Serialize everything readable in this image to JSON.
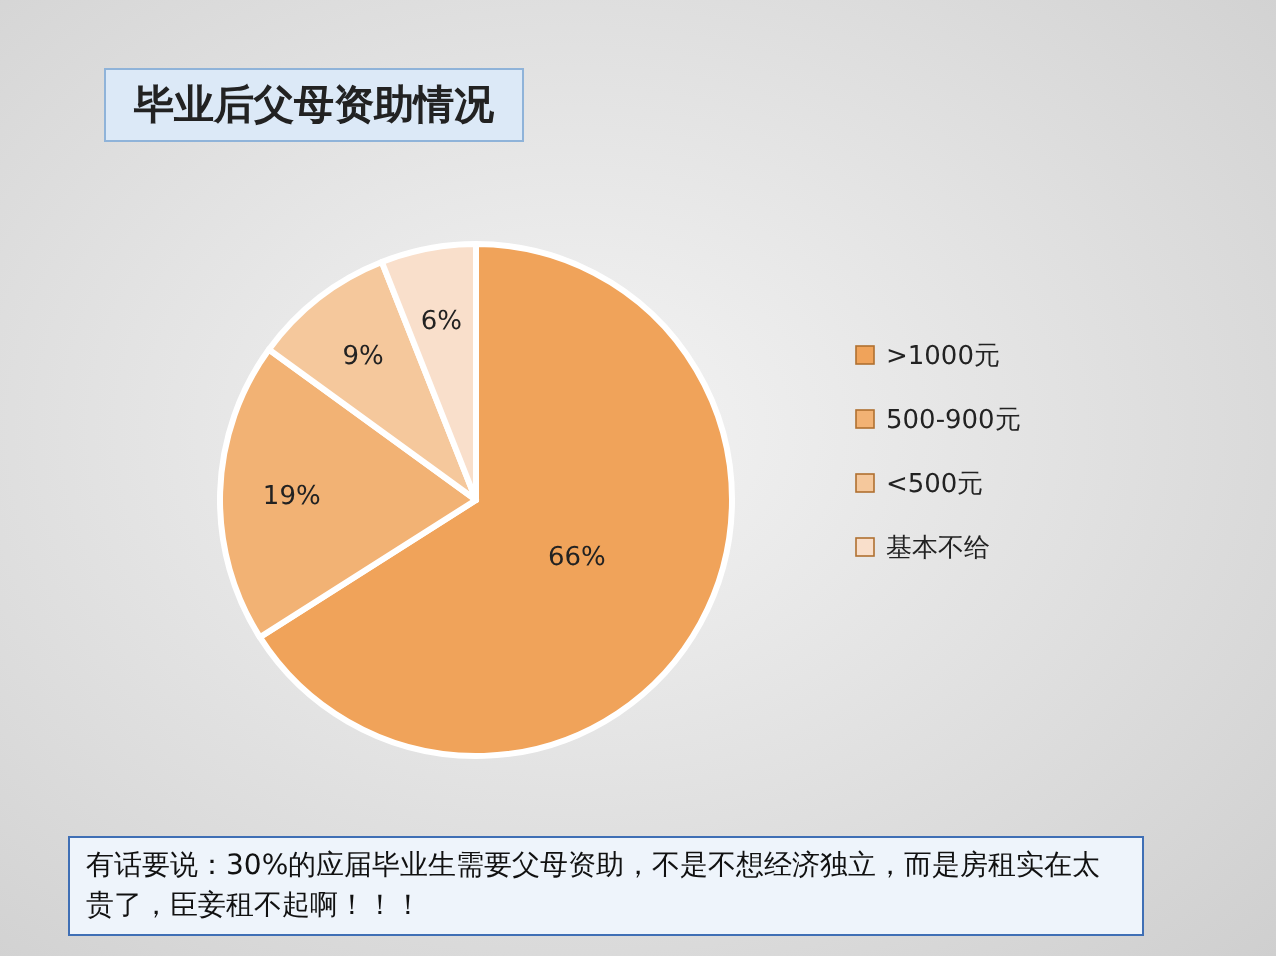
{
  "chart_data": {
    "type": "pie",
    "title": "毕业后父母资助情况",
    "categories": [
      ">1000元",
      "500-900元",
      "<500元",
      "基本不给"
    ],
    "values": [
      66,
      19,
      9,
      6
    ],
    "colors": [
      "#f0a35a",
      "#f2b274",
      "#f5c89c",
      "#f9dfcb"
    ],
    "value_labels": [
      "66%",
      "19%",
      "9%",
      "6%"
    ],
    "legend": "right",
    "annotations": [
      "有话要说：30%的应届毕业生需要父母资助，不是不想经济独立，而是房租实在太贵了，臣妾租不起啊！！！"
    ]
  }
}
